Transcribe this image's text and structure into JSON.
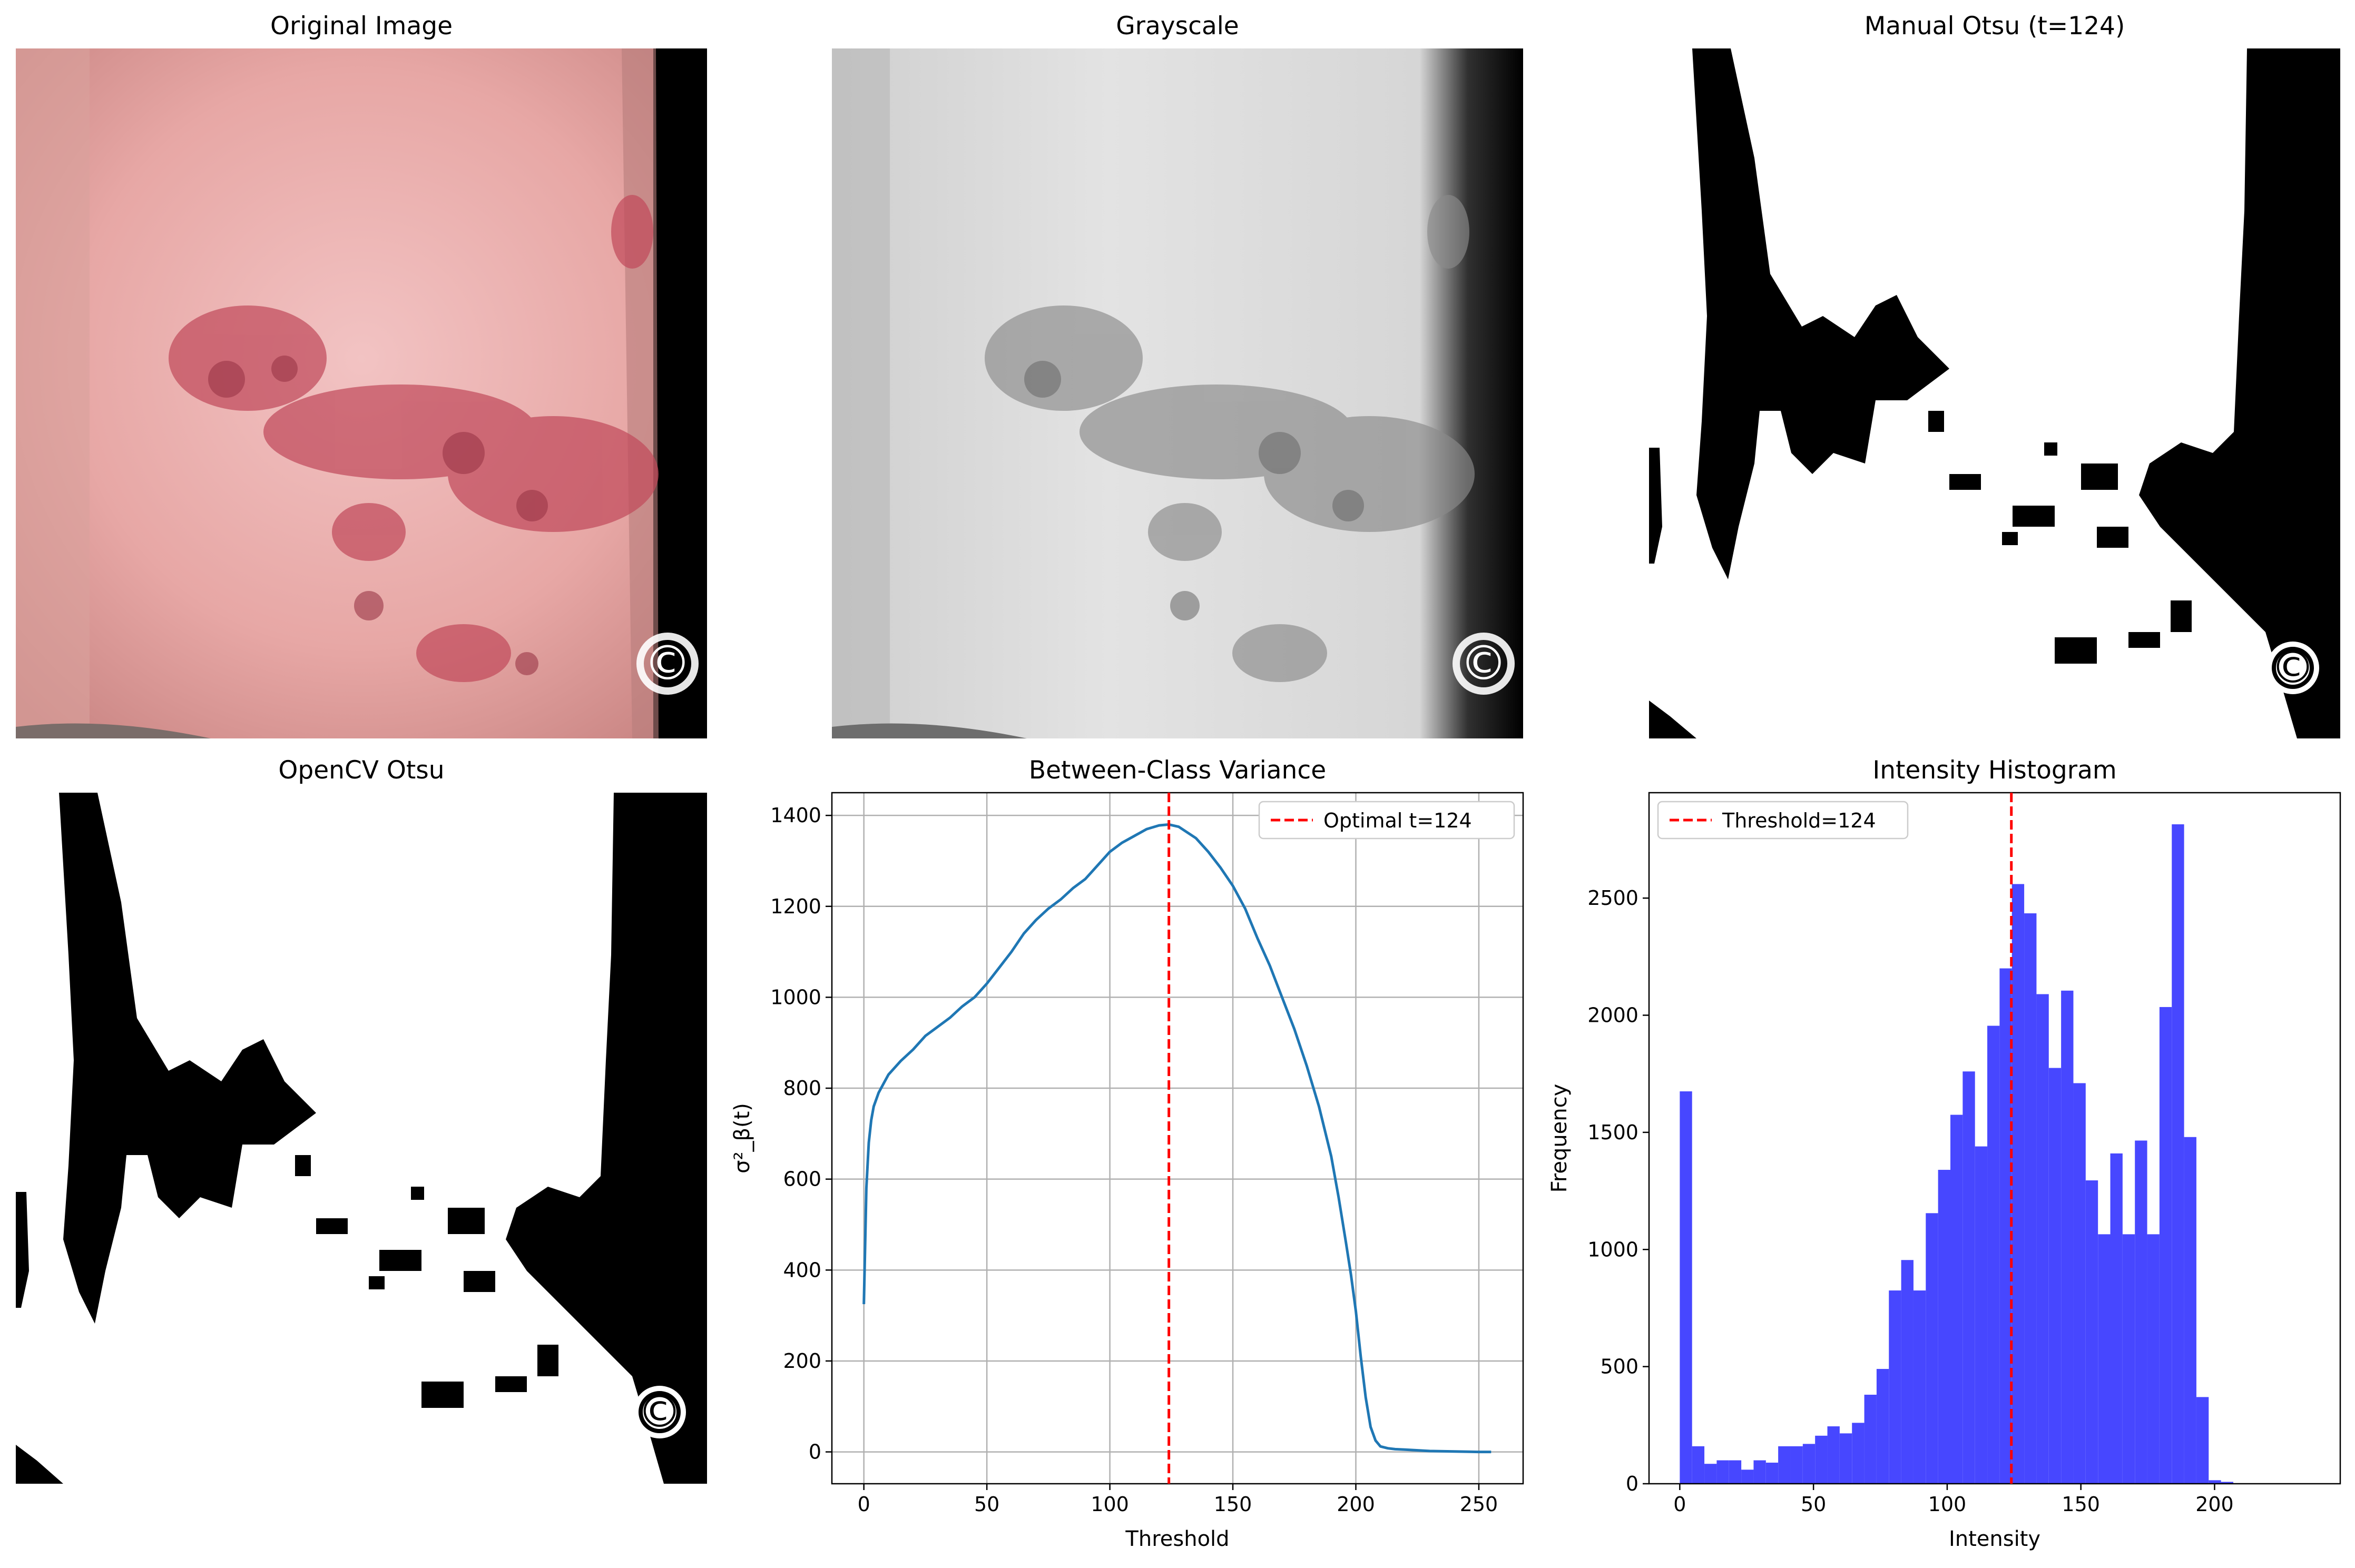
{
  "panels": {
    "original": {
      "title": "Original Image",
      "watermark": "©"
    },
    "grayscale": {
      "title": "Grayscale",
      "watermark": "©"
    },
    "manual": {
      "title": "Manual Otsu (t=124)",
      "watermark": "©"
    },
    "opencv": {
      "title": "OpenCV Otsu",
      "watermark": "©"
    }
  },
  "colors": {
    "variance_line": "#1f77b4",
    "threshold_line": "#ff0000",
    "histogram_bars": "#4747ff",
    "grid": "#b0b0b0"
  },
  "chart_data": [
    {
      "type": "line",
      "title": "Between-Class Variance",
      "xlabel": "Threshold",
      "ylabel": "σ²_β(t)",
      "xlim": [
        -13,
        268
      ],
      "ylim": [
        -70,
        1450
      ],
      "xticks": [
        0,
        50,
        100,
        150,
        200,
        250
      ],
      "yticks": [
        0,
        200,
        400,
        600,
        800,
        1000,
        1200,
        1400
      ],
      "grid": true,
      "legend_position": "upper right",
      "series": [
        {
          "x": [
            0,
            1,
            2,
            3,
            4,
            6,
            8,
            10,
            15,
            20,
            25,
            30,
            35,
            40,
            45,
            50,
            55,
            60,
            65,
            70,
            75,
            80,
            85,
            90,
            95,
            100,
            105,
            110,
            115,
            120,
            124,
            128,
            135,
            140,
            145,
            150,
            155,
            160,
            165,
            170,
            175,
            180,
            185,
            190,
            193,
            196,
            198,
            200,
            202,
            204,
            206,
            208,
            210,
            213,
            216,
            220,
            230,
            240,
            250,
            255
          ],
          "y": [
            325,
            580,
            680,
            730,
            760,
            790,
            810,
            830,
            860,
            885,
            915,
            935,
            955,
            980,
            1000,
            1030,
            1065,
            1100,
            1140,
            1170,
            1195,
            1215,
            1240,
            1260,
            1290,
            1320,
            1340,
            1355,
            1370,
            1378,
            1380,
            1375,
            1350,
            1320,
            1285,
            1245,
            1195,
            1130,
            1070,
            1000,
            930,
            850,
            760,
            650,
            560,
            460,
            390,
            310,
            210,
            120,
            55,
            25,
            12,
            8,
            6,
            5,
            2,
            1,
            0,
            0
          ]
        }
      ],
      "annotations": [
        {
          "type": "vline",
          "x": 124,
          "label": "Optimal t=124"
        }
      ]
    },
    {
      "type": "bar",
      "title": "Intensity Histogram",
      "xlabel": "Intensity",
      "ylabel": "Frequency",
      "xlim": [
        -11.5,
        247
      ],
      "ylim": [
        0,
        2950
      ],
      "xticks": [
        0,
        50,
        100,
        150,
        200
      ],
      "yticks": [
        0,
        500,
        1000,
        1500,
        2000,
        2500
      ],
      "grid": false,
      "legend_position": "upper left",
      "bin_width": 4.6,
      "bin_start": 0,
      "values": [
        1675,
        160,
        85,
        100,
        100,
        60,
        100,
        90,
        160,
        160,
        170,
        205,
        245,
        215,
        260,
        380,
        490,
        825,
        955,
        825,
        1155,
        1340,
        1575,
        1760,
        1440,
        1955,
        2200,
        2560,
        2435,
        2090,
        1775,
        2105,
        1710,
        1295,
        1065,
        1410,
        1065,
        1465,
        1065,
        2035,
        2815,
        1480,
        370,
        15,
        8,
        0
      ],
      "annotations": [
        {
          "type": "vline",
          "x": 124,
          "label": "Threshold=124"
        }
      ]
    }
  ]
}
